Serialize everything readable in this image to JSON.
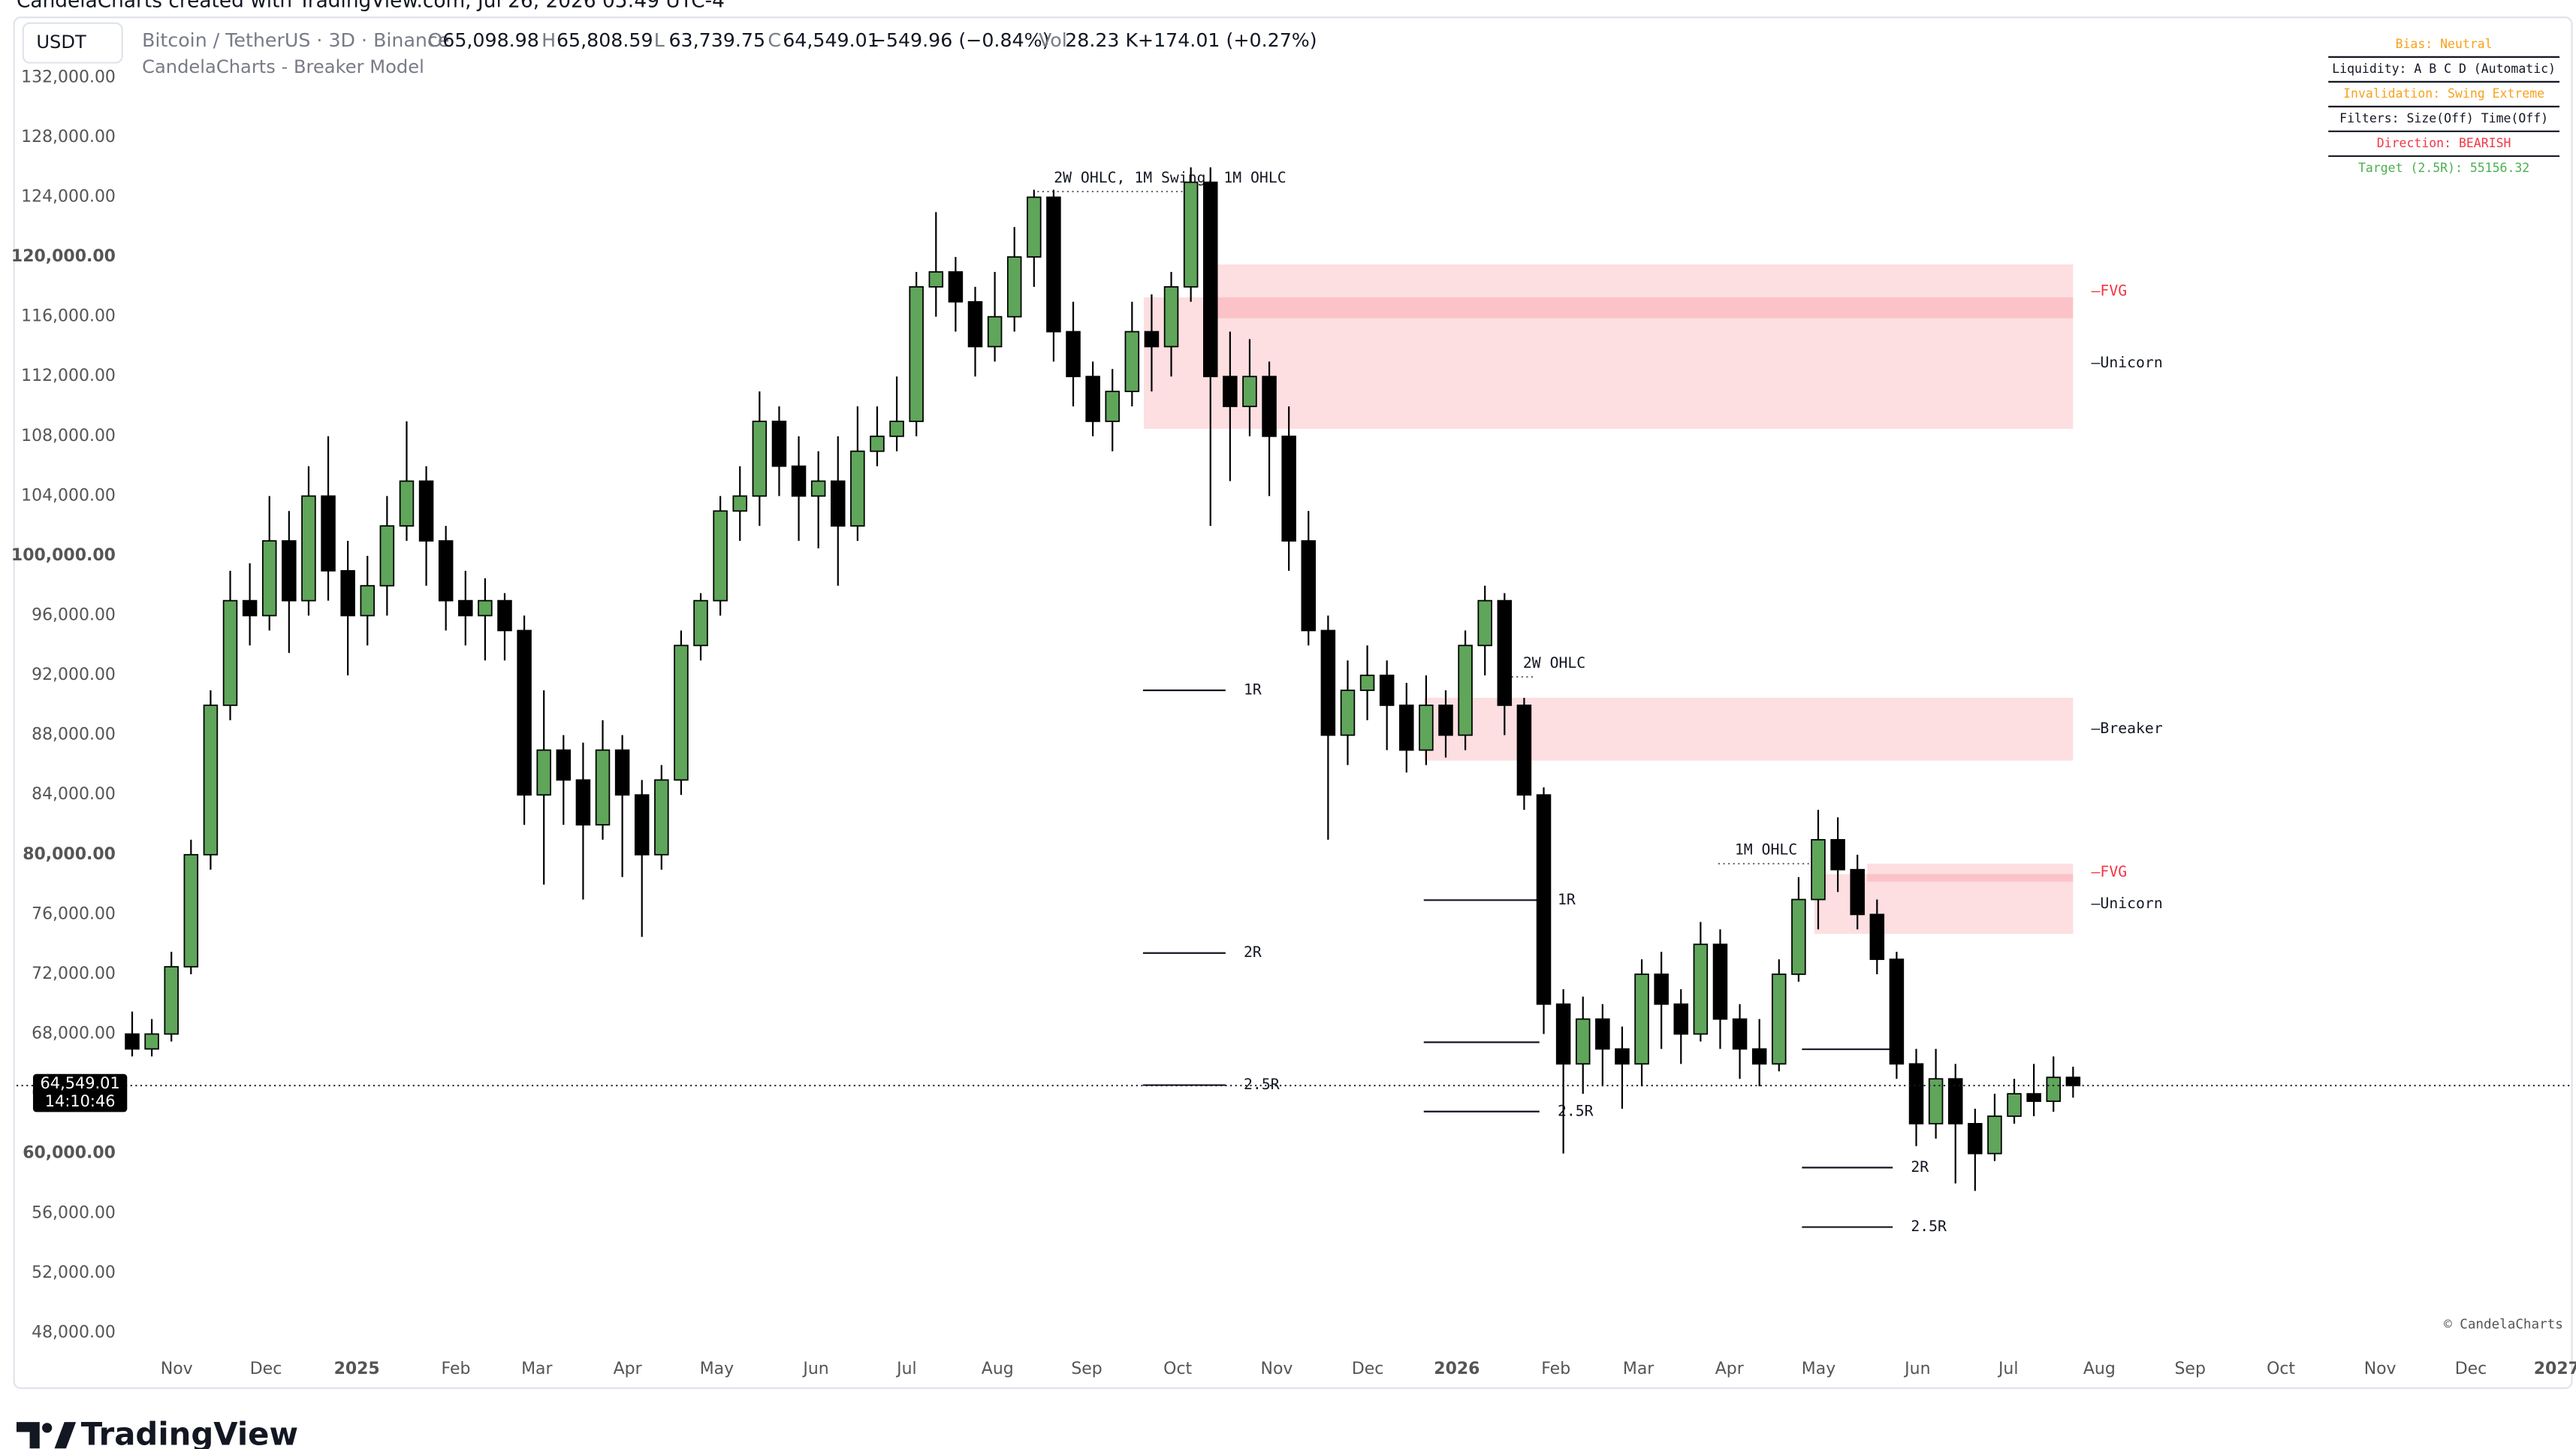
{
  "header": {
    "watermark_top": "CandelaCharts created with TradingView.com, Jul 26, 2026 05:49 UTC-4",
    "currency": "USDT",
    "symbol": "Bitcoin / TetherUS · 3D · Binance",
    "ohlc": [
      {
        "label": "O",
        "value": "65,098.98"
      },
      {
        "label": "H",
        "value": "65,808.59"
      },
      {
        "label": "L",
        "value": "63,739.75"
      },
      {
        "label": "C",
        "value": "64,549.01"
      }
    ],
    "change": "−549.96 (−0.84%)",
    "volume_label": "Vol",
    "volume": "28.23 K",
    "volume_change": "+174.01 (+0.27%)",
    "indicator": "CandelaCharts - Breaker Model"
  },
  "table": [
    {
      "text": "Bias: Neutral",
      "color": "#f7a21b"
    },
    {
      "text": "Liquidity: A B C D (Automatic)",
      "color": "#131722"
    },
    {
      "text": "Invalidation: Swing Extreme",
      "color": "#f7a21b"
    },
    {
      "text": "Filters: Size(Off) Time(Off)",
      "color": "#131722"
    },
    {
      "text": "Direction: BEARISH",
      "color": "#f23645"
    },
    {
      "text": "Target (2.5R): 55156.32",
      "color": "#4caf50"
    }
  ],
  "chart_data": {
    "type": "candlestick",
    "up_color": "#5fa55a",
    "down_color": "#000000",
    "grid": false,
    "open": [
      68000,
      67000,
      68000,
      72500,
      80000,
      90000,
      97000,
      96000,
      101000,
      97000,
      104000,
      99000,
      96000,
      98000,
      102000,
      105000,
      101000,
      97000,
      96000,
      97000,
      95000,
      84000,
      87000,
      85000,
      82000,
      87000,
      84000,
      80000,
      85000,
      94000,
      97000,
      103000,
      104000,
      109000,
      106000,
      104000,
      105000,
      102000,
      107000,
      108000,
      109000,
      118000,
      119000,
      117000,
      114000,
      116000,
      120000,
      124000,
      115000,
      112000,
      109000,
      111000,
      115000,
      114000,
      118000,
      125000,
      112000,
      110000,
      112000,
      108000,
      101000,
      95000,
      88000,
      91000,
      92000,
      90000,
      87000,
      90000,
      88000,
      94000,
      97000,
      90000,
      84000,
      70000,
      66000,
      69000,
      67000,
      66000,
      72000,
      70000,
      68000,
      74000,
      69000,
      67000,
      66000,
      72000,
      77000,
      81000,
      79000,
      76000,
      73000,
      66000,
      62000,
      65000,
      62000,
      60000,
      62500,
      64000,
      63500,
      65098.98
    ],
    "high": [
      69500,
      69000,
      73500,
      81000,
      91000,
      99000,
      99500,
      104000,
      103000,
      106000,
      108000,
      101000,
      100000,
      104000,
      109000,
      106000,
      102000,
      99000,
      98500,
      97500,
      96000,
      91000,
      88000,
      87500,
      89000,
      88000,
      85000,
      86000,
      95000,
      97500,
      104000,
      106000,
      111000,
      110000,
      108000,
      107000,
      108000,
      110000,
      110000,
      112000,
      119000,
      123000,
      120000,
      118000,
      119000,
      122000,
      124500,
      124500,
      117000,
      113000,
      112500,
      117000,
      117500,
      119000,
      126000,
      126000,
      115000,
      114500,
      113000,
      110000,
      103000,
      96000,
      93000,
      94000,
      93000,
      91500,
      92000,
      91000,
      95000,
      98000,
      97500,
      90500,
      84500,
      71000,
      70500,
      70000,
      68500,
      73000,
      73500,
      71000,
      75500,
      75000,
      70000,
      69000,
      73000,
      78500,
      83000,
      82500,
      80000,
      77000,
      73500,
      67000,
      67000,
      66000,
      63000,
      64000,
      65000,
      66000,
      66500,
      65808.59
    ],
    "low": [
      66500,
      66500,
      67500,
      72000,
      79000,
      89000,
      94000,
      95000,
      93500,
      96000,
      97000,
      92000,
      94000,
      96000,
      101000,
      98000,
      95000,
      94000,
      93000,
      93000,
      82000,
      78000,
      82000,
      77000,
      81000,
      78500,
      74500,
      79000,
      84000,
      93000,
      96000,
      101000,
      102000,
      104000,
      101000,
      100500,
      98000,
      101000,
      106000,
      107000,
      108000,
      116000,
      115000,
      112000,
      113000,
      115000,
      118000,
      113000,
      110000,
      108000,
      107000,
      110000,
      111000,
      112000,
      117000,
      102000,
      105000,
      108000,
      104000,
      99000,
      94000,
      81000,
      86000,
      89000,
      87000,
      85500,
      86000,
      86500,
      87000,
      92000,
      88000,
      83000,
      68000,
      60000,
      64000,
      64500,
      63000,
      64500,
      67000,
      66000,
      67500,
      67000,
      65000,
      64500,
      65500,
      71500,
      75000,
      77500,
      75000,
      72000,
      65000,
      60500,
      61000,
      58000,
      57500,
      59500,
      62000,
      62500,
      62800,
      63739.75
    ],
    "close": [
      67000,
      68000,
      72500,
      80000,
      90000,
      97000,
      96000,
      101000,
      97000,
      104000,
      99000,
      96000,
      98000,
      102000,
      105000,
      101000,
      97000,
      96000,
      97000,
      95000,
      84000,
      87000,
      85000,
      82000,
      87000,
      84000,
      80000,
      85000,
      94000,
      97000,
      103000,
      104000,
      109000,
      106000,
      104000,
      105000,
      102000,
      107000,
      108000,
      109000,
      118000,
      119000,
      117000,
      114000,
      116000,
      120000,
      124000,
      115000,
      112000,
      109000,
      111000,
      115000,
      114000,
      118000,
      125000,
      112000,
      110000,
      112000,
      108000,
      101000,
      95000,
      88000,
      91000,
      92000,
      90000,
      87000,
      90000,
      88000,
      94000,
      97000,
      90000,
      84000,
      70000,
      66000,
      69000,
      67000,
      66000,
      72000,
      70000,
      68000,
      74000,
      69000,
      67000,
      66000,
      72000,
      77000,
      81000,
      79000,
      76000,
      73000,
      66000,
      62000,
      65000,
      62000,
      60000,
      62500,
      64000,
      63500,
      65098.98,
      64549.01
    ],
    "xlim": [
      -5.9,
      124.4
    ],
    "xticks": [
      {
        "value": 2.27,
        "label": "Nov"
      },
      {
        "value": 6.82,
        "label": "Dec"
      },
      {
        "value": 11.46,
        "label": "2025"
      },
      {
        "value": 16.51,
        "label": "Feb"
      },
      {
        "value": 20.64,
        "label": "Mar"
      },
      {
        "value": 25.27,
        "label": "Apr"
      },
      {
        "value": 29.82,
        "label": "May"
      },
      {
        "value": 34.88,
        "label": "Jun"
      },
      {
        "value": 39.51,
        "label": "Jul"
      },
      {
        "value": 44.14,
        "label": "Aug"
      },
      {
        "value": 48.69,
        "label": "Sep"
      },
      {
        "value": 53.33,
        "label": "Oct"
      },
      {
        "value": 58.38,
        "label": "Nov"
      },
      {
        "value": 63.02,
        "label": "Dec"
      },
      {
        "value": 67.57,
        "label": "2026"
      },
      {
        "value": 72.62,
        "label": "Feb"
      },
      {
        "value": 76.83,
        "label": "Mar"
      },
      {
        "value": 81.47,
        "label": "Apr"
      },
      {
        "value": 86.02,
        "label": "May"
      },
      {
        "value": 91.07,
        "label": "Jun"
      },
      {
        "value": 95.7,
        "label": "Jul"
      },
      {
        "value": 100.34,
        "label": "Aug"
      },
      {
        "value": 104.97,
        "label": "Sep"
      },
      {
        "value": 109.6,
        "label": "Oct"
      },
      {
        "value": 114.66,
        "label": "Nov"
      },
      {
        "value": 119.29,
        "label": "Dec"
      },
      {
        "value": 123.67,
        "label": "2027"
      }
    ],
    "ylim": [
      48000,
      132000
    ],
    "yticks": [
      {
        "value": 132000,
        "label": "132,000.00"
      },
      {
        "value": 128000,
        "label": "128,000.00"
      },
      {
        "value": 124000,
        "label": "124,000.00"
      },
      {
        "value": 120000,
        "label": "120,000.00"
      },
      {
        "value": 116000,
        "label": "116,000.00"
      },
      {
        "value": 112000,
        "label": "112,000.00"
      },
      {
        "value": 108000,
        "label": "108,000.00"
      },
      {
        "value": 104000,
        "label": "104,000.00"
      },
      {
        "value": 100000,
        "label": "100,000.00"
      },
      {
        "value": 96000,
        "label": "96,000.00"
      },
      {
        "value": 92000,
        "label": "92,000.00"
      },
      {
        "value": 88000,
        "label": "88,000.00"
      },
      {
        "value": 84000,
        "label": "84,000.00"
      },
      {
        "value": 80000,
        "label": "80,000.00"
      },
      {
        "value": 76000,
        "label": "76,000.00"
      },
      {
        "value": 72000,
        "label": "72,000.00"
      },
      {
        "value": 68000,
        "label": "68,000.00"
      },
      {
        "value": 64000,
        "label": "64,000.00"
      },
      {
        "value": 60000,
        "label": "60,000.00"
      },
      {
        "value": 56000,
        "label": "56,000.00"
      },
      {
        "value": 52000,
        "label": "52,000.00"
      },
      {
        "value": 48000,
        "label": "48,000.00"
      }
    ],
    "zones": [
      {
        "label": "–FVG",
        "label_color": "#f23645",
        "top": 119500,
        "bottom": 115900,
        "x": [
          54.8,
          99
        ]
      },
      {
        "label": "–Unicorn",
        "label_color": "#131722",
        "top": 117300,
        "bottom": 108500,
        "x": [
          51.6,
          99
        ]
      },
      {
        "label": "–Breaker",
        "label_color": "#131722",
        "top": 90500,
        "bottom": 86300,
        "x": [
          65.9,
          99
        ]
      },
      {
        "label": "–FVG",
        "label_color": "#f23645",
        "top": 79400,
        "bottom": 78200,
        "x": [
          88.5,
          99
        ]
      },
      {
        "label": "–Unicorn",
        "label_color": "#131722",
        "top": 78700,
        "bottom": 74700,
        "x": [
          85.8,
          99
        ]
      }
    ],
    "levels": [
      {
        "value": 91000,
        "label": "1R",
        "x": [
          51.56,
          55.77
        ]
      },
      {
        "value": 73420,
        "label": "2R",
        "x": [
          51.56,
          55.77
        ]
      },
      {
        "value": 64580,
        "label": "2.5R",
        "x": [
          51.56,
          55.77
        ]
      },
      {
        "value": 76960,
        "label": "1R",
        "x": [
          65.88,
          71.78
        ]
      },
      {
        "value": 67450,
        "x": [
          65.88,
          71.78
        ]
      },
      {
        "value": 62810,
        "label": "2.5R",
        "x": [
          65.88,
          71.78
        ]
      },
      {
        "value": 66980,
        "x": [
          85.17,
          89.8
        ]
      },
      {
        "value": 59060,
        "label": "2R",
        "x": [
          85.17,
          89.8
        ]
      },
      {
        "value": 55080,
        "label": "2.5R",
        "x": [
          85.17,
          89.8
        ]
      }
    ],
    "annotations": [
      {
        "text": "2W OHLC, 1M Swing, 1M OHLC",
        "price": 124380,
        "x": [
          46.17,
          53.9
        ]
      },
      {
        "text": "2W OHLC",
        "price": 91900,
        "x": [
          70.1,
          71.6
        ]
      },
      {
        "text": "1M OHLC",
        "price": 79400,
        "x": [
          80.9,
          85.9
        ]
      }
    ],
    "last_price": 64549.01,
    "last_price_label": "64,549.01",
    "countdown": "14:10:46"
  },
  "footer": {
    "copyright": "© CandelaCharts",
    "brand": "TradingView"
  }
}
